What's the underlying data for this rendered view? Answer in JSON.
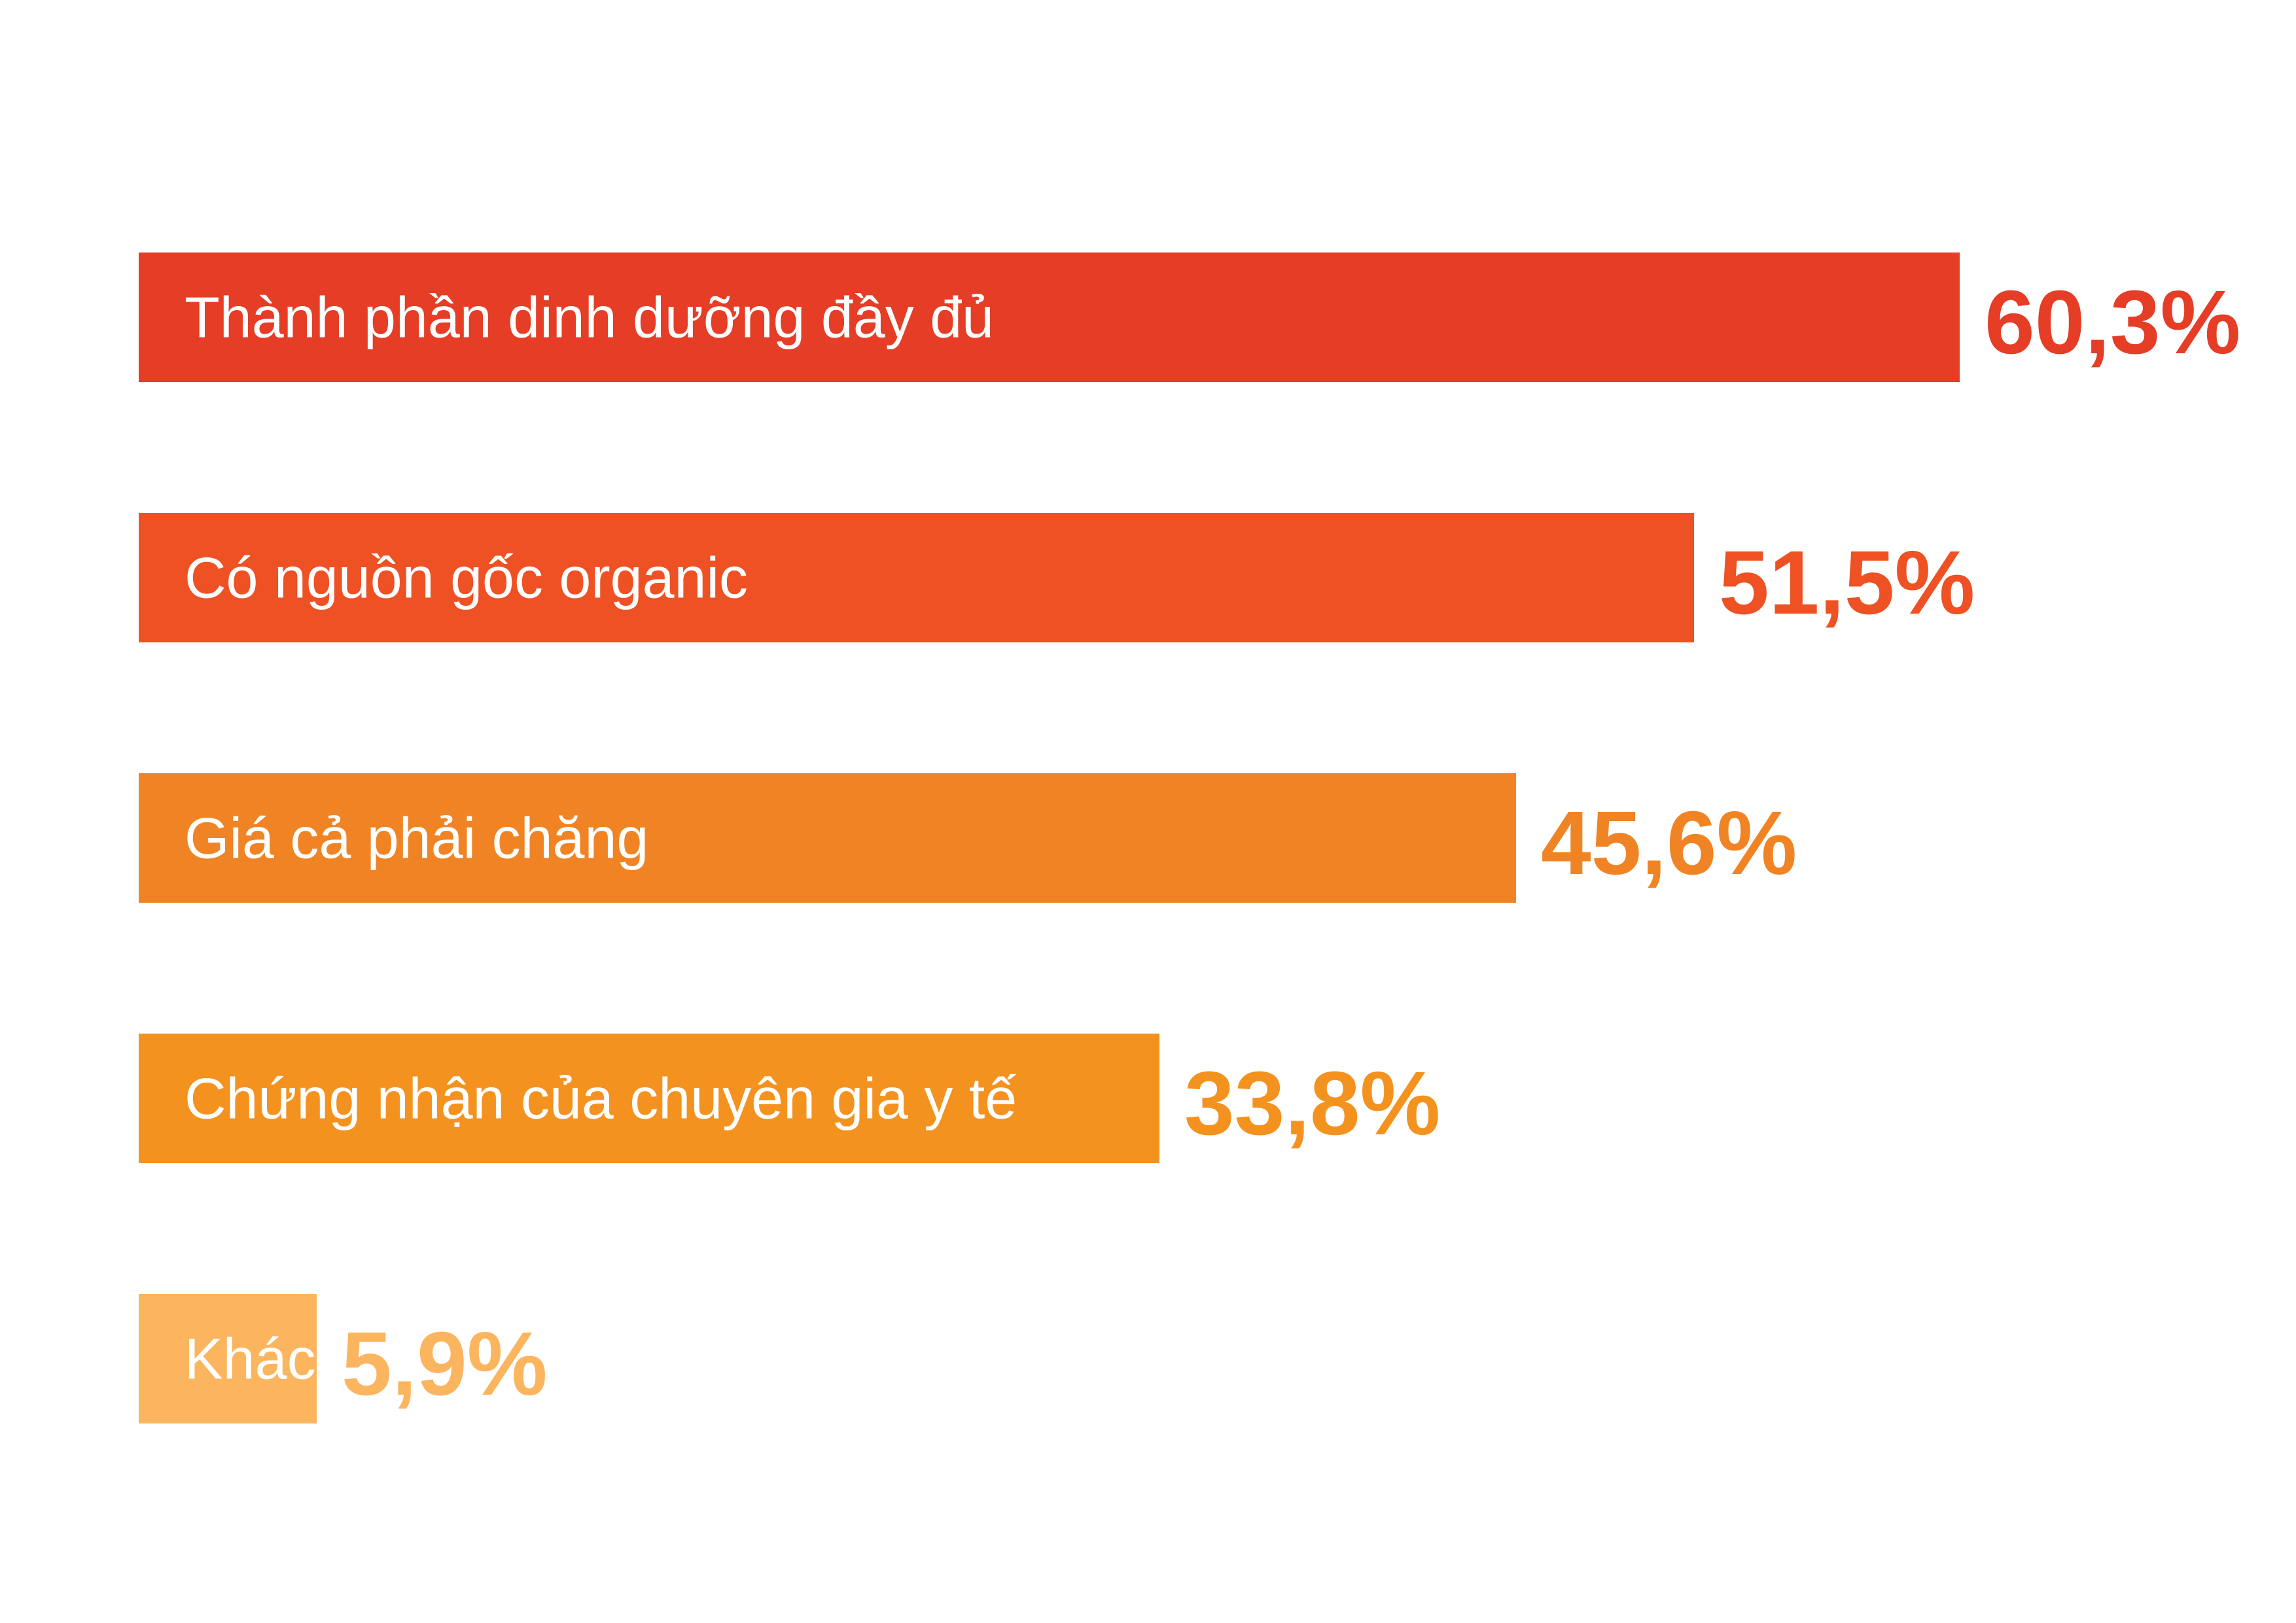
{
  "chart_data": {
    "type": "bar",
    "orientation": "horizontal",
    "title": "",
    "xlabel": "",
    "ylabel": "",
    "categories": [
      "Thành phần dinh dưỡng đầy đủ",
      "Có nguồn gốc organic",
      "Giá cả phải chăng",
      "Chứng nhận của chuyên gia y tế",
      "Khác"
    ],
    "values": [
      60.3,
      51.5,
      45.6,
      33.8,
      5.9
    ],
    "value_labels": [
      "60,3%",
      "51,5%",
      "45,6%",
      "33,8%",
      "5,9%"
    ],
    "colors": [
      "#E53D26",
      "#EE5124",
      "#F08424",
      "#F4921F",
      "#FBB55F"
    ],
    "unit": "%",
    "xlim": [
      0,
      60.3
    ],
    "grid": false,
    "legend": "none"
  }
}
